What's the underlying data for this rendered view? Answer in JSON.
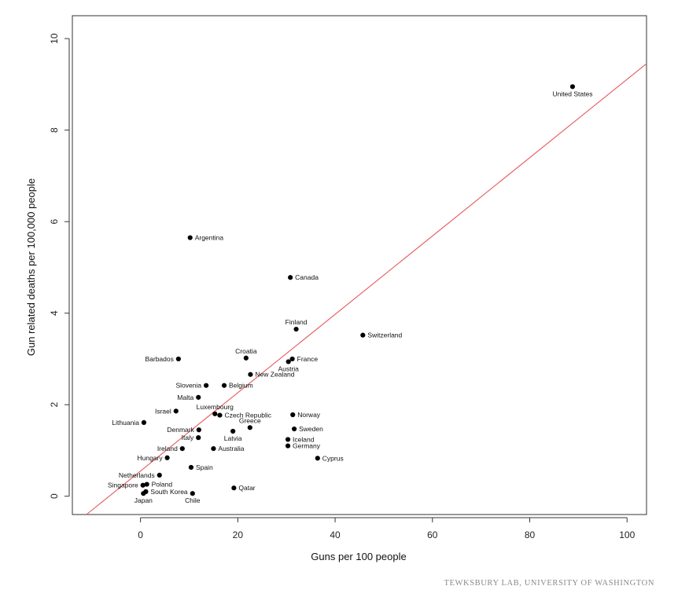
{
  "chart_data": {
    "type": "scatter",
    "title": "",
    "xlabel": "Guns per 100 people",
    "ylabel": "Gun related deaths per 100,000 people",
    "xlim": [
      -14,
      104
    ],
    "ylim": [
      -0.4,
      10.5
    ],
    "xticks": [
      0,
      20,
      40,
      60,
      80,
      100
    ],
    "yticks": [
      0,
      2,
      4,
      6,
      8,
      10
    ],
    "grid": false,
    "point_color": "#000000",
    "trend_color": "#e8595b",
    "trendline": {
      "slope": 0.0856,
      "intercept": 0.55
    },
    "points": [
      {
        "name": "United States",
        "x": 88.8,
        "y": 8.95,
        "anchor": "below-center"
      },
      {
        "name": "Argentina",
        "x": 10.2,
        "y": 5.65,
        "anchor": "right"
      },
      {
        "name": "Canada",
        "x": 30.8,
        "y": 4.78,
        "anchor": "right"
      },
      {
        "name": "Switzerland",
        "x": 45.7,
        "y": 3.52,
        "anchor": "right"
      },
      {
        "name": "Finland",
        "x": 32.0,
        "y": 3.65,
        "anchor": "above"
      },
      {
        "name": "Croatia",
        "x": 21.7,
        "y": 3.02,
        "anchor": "above"
      },
      {
        "name": "Barbados",
        "x": 7.8,
        "y": 3.0,
        "anchor": "left"
      },
      {
        "name": "France",
        "x": 31.2,
        "y": 3.0,
        "anchor": "right"
      },
      {
        "name": "Austria",
        "x": 30.4,
        "y": 2.94,
        "anchor": "below"
      },
      {
        "name": "New Zealand",
        "x": 22.6,
        "y": 2.66,
        "anchor": "right"
      },
      {
        "name": "Slovenia",
        "x": 13.5,
        "y": 2.42,
        "anchor": "left"
      },
      {
        "name": "Belgium",
        "x": 17.2,
        "y": 2.42,
        "anchor": "right"
      },
      {
        "name": "Malta",
        "x": 11.9,
        "y": 2.16,
        "anchor": "left"
      },
      {
        "name": "Luxembourg",
        "x": 15.3,
        "y": 1.8,
        "anchor": "above"
      },
      {
        "name": "Czech Republic",
        "x": 16.3,
        "y": 1.77,
        "anchor": "right"
      },
      {
        "name": "Israel",
        "x": 7.3,
        "y": 1.86,
        "anchor": "left"
      },
      {
        "name": "Norway",
        "x": 31.3,
        "y": 1.78,
        "anchor": "right"
      },
      {
        "name": "Lithuania",
        "x": 0.7,
        "y": 1.61,
        "anchor": "left"
      },
      {
        "name": "Greece",
        "x": 22.5,
        "y": 1.5,
        "anchor": "above"
      },
      {
        "name": "Denmark",
        "x": 12.0,
        "y": 1.45,
        "anchor": "left"
      },
      {
        "name": "Latvia",
        "x": 19.0,
        "y": 1.42,
        "anchor": "below"
      },
      {
        "name": "Sweden",
        "x": 31.6,
        "y": 1.47,
        "anchor": "right"
      },
      {
        "name": "Italy",
        "x": 11.9,
        "y": 1.28,
        "anchor": "left"
      },
      {
        "name": "Iceland",
        "x": 30.3,
        "y": 1.24,
        "anchor": "right"
      },
      {
        "name": "Germany",
        "x": 30.3,
        "y": 1.1,
        "anchor": "right"
      },
      {
        "name": "Ireland",
        "x": 8.6,
        "y": 1.04,
        "anchor": "left"
      },
      {
        "name": "Australia",
        "x": 15.0,
        "y": 1.04,
        "anchor": "right"
      },
      {
        "name": "Cyprus",
        "x": 36.4,
        "y": 0.83,
        "anchor": "right"
      },
      {
        "name": "Hungary",
        "x": 5.5,
        "y": 0.84,
        "anchor": "left"
      },
      {
        "name": "Spain",
        "x": 10.4,
        "y": 0.63,
        "anchor": "right"
      },
      {
        "name": "Netherlands",
        "x": 3.9,
        "y": 0.46,
        "anchor": "left"
      },
      {
        "name": "Poland",
        "x": 1.3,
        "y": 0.26,
        "anchor": "right"
      },
      {
        "name": "Singapore",
        "x": 0.5,
        "y": 0.24,
        "anchor": "left"
      },
      {
        "name": "Qatar",
        "x": 19.2,
        "y": 0.18,
        "anchor": "right"
      },
      {
        "name": "South Korea",
        "x": 1.1,
        "y": 0.1,
        "anchor": "right"
      },
      {
        "name": "Japan",
        "x": 0.6,
        "y": 0.06,
        "anchor": "below"
      },
      {
        "name": "Chile",
        "x": 10.7,
        "y": 0.06,
        "anchor": "below"
      }
    ]
  },
  "credit": "TEWKSBURY LAB, UNIVERSITY OF WASHINGTON"
}
